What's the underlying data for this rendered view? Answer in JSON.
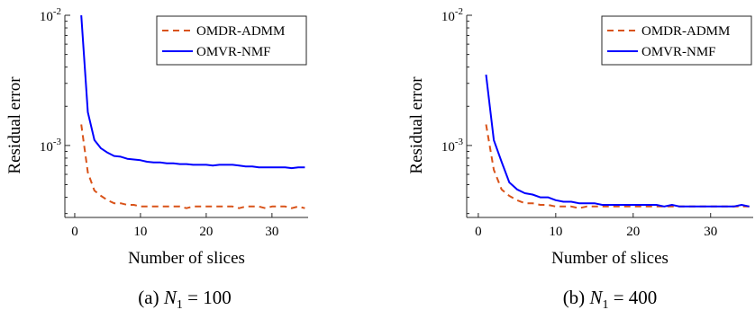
{
  "chart_data": [
    {
      "type": "line",
      "caption": {
        "label": "(a)",
        "var": "N",
        "sub": "1",
        "eq": " = 100"
      },
      "xlabel": "Number of slices",
      "ylabel": "Residual error",
      "xlim": [
        -1.5,
        35.5
      ],
      "ylim": [
        0.00028,
        0.01
      ],
      "yscale": "log",
      "xticks": [
        0,
        10,
        20,
        30
      ],
      "xtick_labels": [
        "0",
        "10",
        "20",
        "30"
      ],
      "yticks": [
        {
          "value": 0.01,
          "base": "10",
          "exp": "-2"
        },
        {
          "value": 0.001,
          "base": "10",
          "exp": "-3"
        }
      ],
      "legend": {
        "position": "top-right"
      },
      "series": [
        {
          "name": "OMDR-ADMM",
          "color": "#D95319",
          "style": "dashed",
          "x": [
            1,
            2,
            3,
            4,
            5,
            6,
            7,
            8,
            9,
            10,
            11,
            12,
            13,
            14,
            15,
            16,
            17,
            18,
            19,
            20,
            21,
            22,
            23,
            24,
            25,
            26,
            27,
            28,
            29,
            30,
            31,
            32,
            33,
            34,
            35
          ],
          "y": [
            0.00145,
            0.00062,
            0.00045,
            0.00041,
            0.00038,
            0.00036,
            0.00036,
            0.00035,
            0.00035,
            0.00034,
            0.00034,
            0.00034,
            0.00034,
            0.00034,
            0.00034,
            0.00034,
            0.00033,
            0.00034,
            0.00034,
            0.00034,
            0.00034,
            0.00034,
            0.00034,
            0.00034,
            0.00033,
            0.00034,
            0.00034,
            0.00034,
            0.00033,
            0.00034,
            0.00034,
            0.00034,
            0.00033,
            0.00034,
            0.00033
          ]
        },
        {
          "name": "OMVR-NMF",
          "color": "#0000FF",
          "style": "solid",
          "x": [
            1,
            2,
            3,
            4,
            5,
            6,
            7,
            8,
            9,
            10,
            11,
            12,
            13,
            14,
            15,
            16,
            17,
            18,
            19,
            20,
            21,
            22,
            23,
            24,
            25,
            26,
            27,
            28,
            29,
            30,
            31,
            32,
            33,
            34,
            35
          ],
          "y": [
            0.01,
            0.0018,
            0.0011,
            0.00095,
            0.00088,
            0.00083,
            0.00082,
            0.00079,
            0.00078,
            0.00077,
            0.00075,
            0.00074,
            0.00074,
            0.00073,
            0.00073,
            0.00072,
            0.00072,
            0.00071,
            0.00071,
            0.00071,
            0.0007,
            0.00071,
            0.00071,
            0.00071,
            0.0007,
            0.00069,
            0.00069,
            0.00068,
            0.00068,
            0.00068,
            0.00068,
            0.00068,
            0.00067,
            0.00068,
            0.00068
          ]
        }
      ]
    },
    {
      "type": "line",
      "caption": {
        "label": "(b)",
        "var": "N",
        "sub": "1",
        "eq": " = 400"
      },
      "xlabel": "Number of slices",
      "ylabel": "Residual error",
      "xlim": [
        -1.5,
        35.5
      ],
      "ylim": [
        0.00028,
        0.01
      ],
      "yscale": "log",
      "xticks": [
        0,
        10,
        20,
        30
      ],
      "xtick_labels": [
        "0",
        "10",
        "20",
        "30"
      ],
      "yticks": [
        {
          "value": 0.01,
          "base": "10",
          "exp": "-2"
        },
        {
          "value": 0.001,
          "base": "10",
          "exp": "-3"
        }
      ],
      "legend": {
        "position": "top-right"
      },
      "series": [
        {
          "name": "OMDR-ADMM",
          "color": "#D95319",
          "style": "dashed",
          "x": [
            1,
            2,
            3,
            4,
            5,
            6,
            7,
            8,
            9,
            10,
            11,
            12,
            13,
            14,
            15,
            16,
            17,
            18,
            19,
            20,
            21,
            22,
            23,
            24,
            25,
            26,
            27,
            28,
            29,
            30,
            31,
            32,
            33,
            34,
            35
          ],
          "y": [
            0.00145,
            0.00065,
            0.00046,
            0.00041,
            0.00038,
            0.00036,
            0.00036,
            0.00035,
            0.00035,
            0.00034,
            0.00034,
            0.00034,
            0.00033,
            0.00034,
            0.00034,
            0.00034,
            0.00034,
            0.00034,
            0.00034,
            0.00034,
            0.00034,
            0.00034,
            0.00034,
            0.00034,
            0.00034,
            0.00034,
            0.00034,
            0.00034,
            0.00034,
            0.00034,
            0.00034,
            0.00034,
            0.00034,
            0.00034,
            0.00034
          ]
        },
        {
          "name": "OMVR-NMF",
          "color": "#0000FF",
          "style": "solid",
          "x": [
            1,
            2,
            3,
            4,
            5,
            6,
            7,
            8,
            9,
            10,
            11,
            12,
            13,
            14,
            15,
            16,
            17,
            18,
            19,
            20,
            21,
            22,
            23,
            24,
            25,
            26,
            27,
            28,
            29,
            30,
            31,
            32,
            33,
            34,
            35
          ],
          "y": [
            0.0035,
            0.0011,
            0.00075,
            0.00052,
            0.00046,
            0.00043,
            0.00042,
            0.0004,
            0.0004,
            0.00038,
            0.00037,
            0.00037,
            0.00036,
            0.00036,
            0.00036,
            0.00035,
            0.00035,
            0.00035,
            0.00035,
            0.00035,
            0.00035,
            0.00035,
            0.00035,
            0.00034,
            0.00035,
            0.00034,
            0.00034,
            0.00034,
            0.00034,
            0.00034,
            0.00034,
            0.00034,
            0.00034,
            0.00035,
            0.00034
          ]
        }
      ]
    }
  ]
}
